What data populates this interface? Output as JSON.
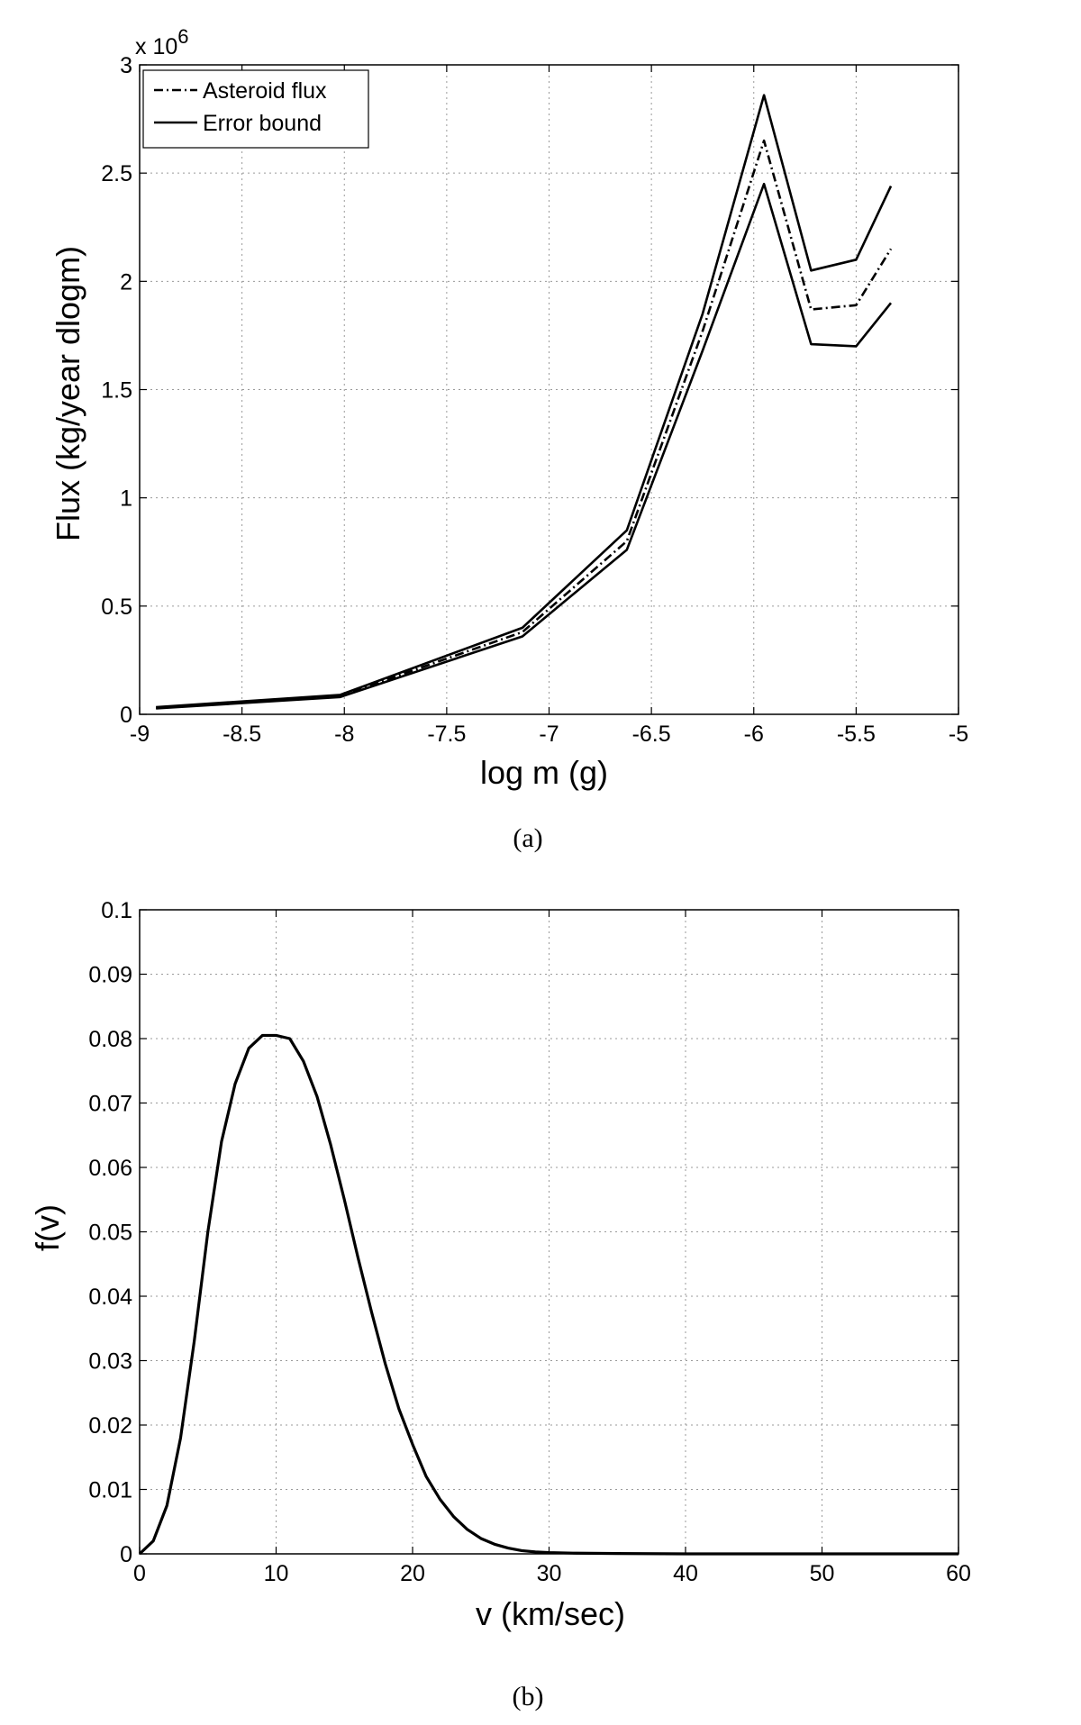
{
  "chart_data": [
    {
      "type": "line",
      "panel_caption": "(a)",
      "xlabel": "log m (g)",
      "ylabel": "Flux (kg/year dlogm)",
      "y_multiplier": "x 10",
      "y_multiplier_exponent": "6",
      "xlim": [
        -9,
        -5
      ],
      "ylim": [
        0,
        3
      ],
      "x_ticks": [
        "-9",
        "-8.5",
        "-8",
        "-7.5",
        "-7",
        "-6.5",
        "-6",
        "-5.5",
        "-5"
      ],
      "y_ticks": [
        "0",
        "0.5",
        "1",
        "1.5",
        "2",
        "2.5",
        "3"
      ],
      "grid": true,
      "legend_position": "top-left",
      "legend": [
        "Asteroid flux",
        "Error bound"
      ],
      "x": [
        -8.92,
        -8.02,
        -7.13,
        -6.62,
        -6.25,
        -5.95,
        -5.72,
        -5.5,
        -5.33
      ],
      "series": [
        {
          "name": "Asteroid flux",
          "style": "dash-dot",
          "values": [
            0.03,
            0.085,
            0.38,
            0.8,
            1.77,
            2.65,
            1.87,
            1.89,
            2.15
          ]
        },
        {
          "name": "Error bound",
          "style": "solid",
          "values": [
            0.033,
            0.09,
            0.4,
            0.85,
            1.85,
            2.86,
            2.05,
            2.1,
            2.44
          ]
        },
        {
          "style": "solid",
          "values": [
            0.027,
            0.08,
            0.36,
            0.76,
            1.68,
            2.45,
            1.71,
            1.7,
            1.9
          ]
        }
      ]
    },
    {
      "type": "line",
      "panel_caption": "(b)",
      "xlabel": "v (km/sec)",
      "ylabel": "f(v)",
      "xlim": [
        0,
        60
      ],
      "ylim": [
        0,
        0.1
      ],
      "x_ticks": [
        "0",
        "10",
        "20",
        "30",
        "40",
        "50",
        "60"
      ],
      "y_ticks": [
        "0",
        "0.01",
        "0.02",
        "0.03",
        "0.04",
        "0.05",
        "0.06",
        "0.07",
        "0.08",
        "0.09",
        "0.1"
      ],
      "grid": true,
      "x": [
        0,
        1,
        2,
        3,
        4,
        5,
        6,
        7,
        8,
        9,
        10,
        11,
        12,
        13,
        14,
        15,
        16,
        17,
        18,
        19,
        20,
        21,
        22,
        23,
        24,
        25,
        26,
        27,
        28,
        29,
        30,
        32,
        35,
        40,
        45,
        50,
        55,
        60
      ],
      "series": [
        {
          "style": "solid",
          "values": [
            0,
            0.002,
            0.0075,
            0.018,
            0.033,
            0.05,
            0.064,
            0.073,
            0.0785,
            0.0805,
            0.0805,
            0.08,
            0.0765,
            0.071,
            0.0635,
            0.055,
            0.046,
            0.0375,
            0.0295,
            0.0225,
            0.017,
            0.012,
            0.0085,
            0.0058,
            0.0038,
            0.0024,
            0.0015,
            0.0009,
            0.0005,
            0.0003,
            0.0002,
            0.0001,
            5e-05,
            0,
            0,
            0,
            0,
            0
          ]
        }
      ]
    }
  ]
}
